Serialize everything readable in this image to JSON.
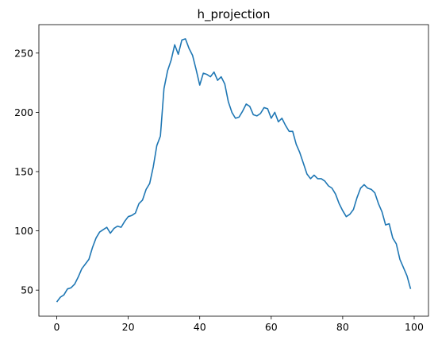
{
  "chart_data": {
    "type": "line",
    "title": "h_projection",
    "xlabel": "",
    "ylabel": "",
    "xlim": [
      -5,
      104
    ],
    "ylim": [
      28,
      274
    ],
    "grid": false,
    "legend": "none",
    "x_ticks": [
      0,
      20,
      40,
      60,
      80,
      100
    ],
    "y_ticks": [
      50,
      100,
      150,
      200,
      250
    ],
    "series": [
      {
        "color": "#1f77b4",
        "x": [
          0,
          1,
          2,
          3,
          4,
          5,
          6,
          7,
          8,
          9,
          10,
          11,
          12,
          13,
          14,
          15,
          16,
          17,
          18,
          19,
          20,
          21,
          22,
          23,
          24,
          25,
          26,
          27,
          28,
          29,
          30,
          31,
          32,
          33,
          34,
          35,
          36,
          37,
          38,
          39,
          40,
          41,
          42,
          43,
          44,
          45,
          46,
          47,
          48,
          49,
          50,
          51,
          52,
          53,
          54,
          55,
          56,
          57,
          58,
          59,
          60,
          61,
          62,
          63,
          64,
          65,
          66,
          67,
          68,
          69,
          70,
          71,
          72,
          73,
          74,
          75,
          76,
          77,
          78,
          79,
          80,
          81,
          82,
          83,
          84,
          85,
          86,
          87,
          88,
          89,
          90,
          91,
          92,
          93,
          94,
          95,
          96,
          97,
          98,
          99
        ],
        "y": [
          40,
          44,
          46,
          51,
          52,
          55,
          61,
          68,
          72,
          76,
          86,
          94,
          99,
          101,
          103,
          98,
          102,
          104,
          103,
          108,
          112,
          113,
          115,
          123,
          126,
          135,
          140,
          154,
          172,
          180,
          220,
          235,
          244,
          257,
          249,
          261,
          262,
          254,
          248,
          236,
          223,
          233,
          232,
          230,
          234,
          227,
          230,
          224,
          209,
          200,
          195,
          196,
          201,
          207,
          205,
          198,
          197,
          199,
          204,
          203,
          195,
          200,
          192,
          195,
          189,
          184,
          184,
          173,
          166,
          157,
          148,
          144,
          147,
          144,
          144,
          142,
          138,
          136,
          131,
          123,
          117,
          112,
          114,
          118,
          128,
          136,
          139,
          136,
          135,
          132,
          123,
          116,
          105,
          106,
          94,
          89,
          76,
          69,
          62,
          51
        ]
      }
    ]
  }
}
